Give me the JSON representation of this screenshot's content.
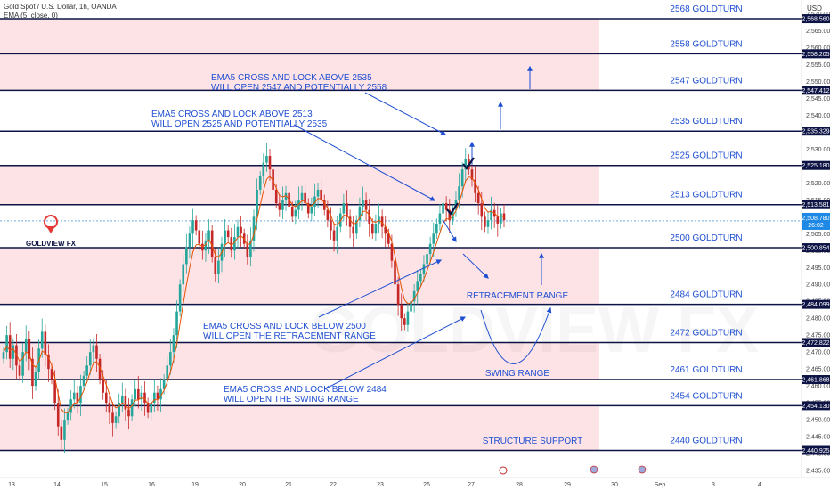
{
  "header": {
    "symbol_line": "Gold Spot / U.S. Dollar, 1h, OANDA",
    "indicator_line": "EMA (5, close, 0)",
    "currency": "USD"
  },
  "logo": {
    "text": "GOLDVIEW FX"
  },
  "watermark": "GOLDVIEW FX",
  "colors": {
    "accent": "#1f4fd1",
    "zone_fill": "#fde2e6",
    "line": "#0d1445",
    "candle_up": "#26a69a",
    "candle_down": "#c62828",
    "ema": "#e65100"
  },
  "chart_data": {
    "type": "candlestick",
    "ylim": [
      2435,
      2572
    ],
    "x_tick_labels": [
      "13",
      "14",
      "15",
      "16",
      "19",
      "20",
      "21",
      "22",
      "23",
      "26",
      "27",
      "28",
      "29",
      "30",
      "Sep",
      "3",
      "4"
    ],
    "y_tick_labels": [
      "2,570.000",
      "2,565.000",
      "2,560.000",
      "2,555.000",
      "2,550.000",
      "2,545.000",
      "2,540.000",
      "2,535.000",
      "2,530.000",
      "2,525.000",
      "2,520.000",
      "2,515.000",
      "2,510.000",
      "2,505.000",
      "2,500.000",
      "2,495.000",
      "2,490.000",
      "2,485.000",
      "2,480.000",
      "2,475.000",
      "2,470.000",
      "2,465.000",
      "2,460.000",
      "2,455.000",
      "2,450.000",
      "2,445.000",
      "2,440.000",
      "2,435.000"
    ],
    "levels": [
      {
        "price": 2568.56,
        "tag": "2,568.560",
        "label": "2568 GOLDTURN"
      },
      {
        "price": 2558.205,
        "tag": "2,558.205",
        "label": "2558 GOLDTURN"
      },
      {
        "price": 2547.412,
        "tag": "2,547.412",
        "label": "2547 GOLDTURN"
      },
      {
        "price": 2535.329,
        "tag": "2,535.329",
        "label": "2535 GOLDTURN"
      },
      {
        "price": 2525.18,
        "tag": "2,525.180",
        "label": "2525 GOLDTURN"
      },
      {
        "price": 2513.581,
        "tag": "2,513.581",
        "label": "2513 GOLDTURN"
      },
      {
        "price": 2500.854,
        "tag": "2,500.854",
        "label": "2500 GOLDTURN"
      },
      {
        "price": 2484.099,
        "tag": "2,484.099",
        "label": "2484 GOLDTURN"
      },
      {
        "price": 2472.822,
        "tag": "2,472.822",
        "label": "2472 GOLDTURN"
      },
      {
        "price": 2461.868,
        "tag": "2,461.868",
        "label": "2461 GOLDTURN"
      },
      {
        "price": 2454.13,
        "tag": "2,454.130",
        "label": "2454 GOLDTURN"
      },
      {
        "price": 2440.925,
        "tag": "2,440.925",
        "label": "2440 GOLDTURN"
      }
    ],
    "current_price": {
      "value": 2508.78,
      "tag": "2,508.780",
      "countdown": "26:02"
    },
    "annotations": [
      {
        "line1": "EMA5 CROSS AND LOCK ABOVE 2535",
        "line2": "WILL OPEN 2547 AND POTENTIALLY 2558"
      },
      {
        "line1": "EMA5 CROSS AND LOCK ABOVE 2513",
        "line2": "WILL OPEN 2525 AND POTENTIALLY 2535"
      },
      {
        "line1": "EMA5 CROSS AND LOCK BELOW 2500",
        "line2": "WILL OPEN THE RETRACEMENT RANGE"
      },
      {
        "line1": "EMA5 CROSS AND LOCK BELOW 2484",
        "line2": "WILL OPEN THE SWING RANGE"
      }
    ],
    "range_labels": {
      "retracement": "RETRACEMENT RANGE",
      "swing": "SWING RANGE",
      "structure": "STRUCTURE SUPPORT"
    },
    "closes": [
      2470,
      2475,
      2468,
      2472,
      2466,
      2463,
      2470,
      2474,
      2468,
      2460,
      2464,
      2471,
      2476,
      2469,
      2465,
      2462,
      2455,
      2448,
      2444,
      2450,
      2452,
      2456,
      2458,
      2455,
      2460,
      2463,
      2466,
      2470,
      2472,
      2468,
      2462,
      2458,
      2455,
      2452,
      2449,
      2451,
      2455,
      2457,
      2453,
      2451,
      2456,
      2459,
      2456,
      2458,
      2455,
      2452,
      2455,
      2458,
      2456,
      2459,
      2462,
      2466,
      2470,
      2475,
      2482,
      2490,
      2496,
      2501,
      2505,
      2509,
      2506,
      2502,
      2500,
      2503,
      2506,
      2498,
      2493,
      2497,
      2502,
      2506,
      2504,
      2500,
      2504,
      2507,
      2505,
      2502,
      2498,
      2503,
      2510,
      2518,
      2522,
      2526,
      2528,
      2524,
      2518,
      2514,
      2512,
      2515,
      2517,
      2513,
      2510,
      2512,
      2515,
      2517,
      2514,
      2511,
      2513,
      2516,
      2518,
      2515,
      2512,
      2509,
      2506,
      2503,
      2507,
      2511,
      2514,
      2510,
      2507,
      2505,
      2509,
      2513,
      2515,
      2512,
      2508,
      2505,
      2508,
      2510,
      2507,
      2505,
      2502,
      2497,
      2490,
      2484,
      2480,
      2478,
      2482,
      2485,
      2488,
      2491,
      2493,
      2496,
      2499,
      2502,
      2505,
      2508,
      2511,
      2514,
      2512,
      2509,
      2512,
      2515,
      2519,
      2524,
      2527,
      2524,
      2521,
      2517,
      2514,
      2510,
      2507,
      2509,
      2512,
      2510,
      2508,
      2511,
      2509
    ]
  }
}
